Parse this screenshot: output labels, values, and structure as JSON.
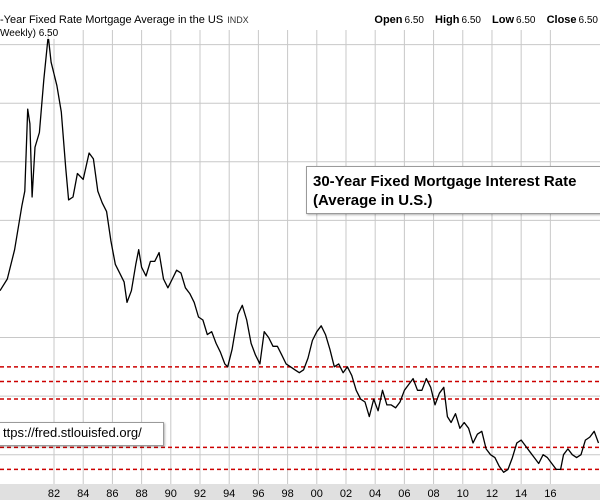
{
  "header": {
    "title": "-Year Fixed Rate Mortgage Average in the US",
    "source_tag": "INDX",
    "open_label": "Open",
    "open_value": "6.50",
    "high_label": "High",
    "high_value": "6.50",
    "low_label": "Low",
    "low_value": "6.50",
    "close_label": "Close",
    "close_value": "6.50"
  },
  "series_legend": "Weekly) 6.50",
  "annotation": {
    "line1": "30-Year Fixed Mortgage Interest Rate",
    "line2": "(Average in U.S.)"
  },
  "url_label": "ttps://fred.stlouisfed.org/",
  "colors": {
    "line": "#000000",
    "reference_lines": "#cc0000",
    "grid": "#c8c8c8",
    "axis_strip": "#e0e0e0"
  },
  "chart_data": {
    "type": "line",
    "title": "",
    "xlabel": "",
    "ylabel": "",
    "xlim": [
      1978.3,
      2019.4
    ],
    "ylim": [
      3.0,
      18.5
    ],
    "x_tick_labels": [
      {
        "year": 1982,
        "label": "82"
      },
      {
        "year": 1984,
        "label": "84"
      },
      {
        "year": 1986,
        "label": "86"
      },
      {
        "year": 1988,
        "label": "88"
      },
      {
        "year": 1990,
        "label": "90"
      },
      {
        "year": 1992,
        "label": "92"
      },
      {
        "year": 1994,
        "label": "94"
      },
      {
        "year": 1996,
        "label": "96"
      },
      {
        "year": 1998,
        "label": "98"
      },
      {
        "year": 2000,
        "label": "00"
      },
      {
        "year": 2002,
        "label": "02"
      },
      {
        "year": 2004,
        "label": "04"
      },
      {
        "year": 2006,
        "label": "06"
      },
      {
        "year": 2008,
        "label": "08"
      },
      {
        "year": 2010,
        "label": "10"
      },
      {
        "year": 2012,
        "label": "12"
      },
      {
        "year": 2014,
        "label": "14"
      },
      {
        "year": 2016,
        "label": "16"
      }
    ],
    "reference_lines": [
      7.0,
      6.5,
      5.9,
      4.25,
      3.5
    ],
    "grid": true,
    "series": [
      {
        "x": [
          1978.3,
          1978.8,
          1979.3,
          1979.8,
          1980.0,
          1980.2,
          1980.35,
          1980.5,
          1980.7,
          1981.0,
          1981.3,
          1981.6,
          1981.8,
          1982.0,
          1982.2,
          1982.5,
          1982.8,
          1983.0,
          1983.3,
          1983.6,
          1984.0,
          1984.4,
          1984.7,
          1985.0,
          1985.3,
          1985.6,
          1985.9,
          1986.2,
          1986.5,
          1986.8,
          1987.0,
          1987.3,
          1987.6,
          1987.8,
          1988.0,
          1988.3,
          1988.6,
          1988.9,
          1989.2,
          1989.5,
          1989.8,
          1990.1,
          1990.4,
          1990.7,
          1991.0,
          1991.3,
          1991.6,
          1991.9,
          1992.2,
          1992.5,
          1992.8,
          1993.1,
          1993.4,
          1993.7,
          1993.9,
          1994.2,
          1994.6,
          1994.9,
          1995.2,
          1995.5,
          1995.8,
          1996.1,
          1996.4,
          1996.7,
          1997.0,
          1997.3,
          1997.6,
          1997.9,
          1998.2,
          1998.5,
          1998.8,
          1999.1,
          1999.4,
          1999.7,
          2000.0,
          2000.3,
          2000.6,
          2000.9,
          2001.2,
          2001.5,
          2001.8,
          2002.1,
          2002.4,
          2002.7,
          2003.0,
          2003.3,
          2003.6,
          2003.9,
          2004.2,
          2004.5,
          2004.8,
          2005.1,
          2005.4,
          2005.7,
          2006.0,
          2006.3,
          2006.6,
          2006.9,
          2007.2,
          2007.5,
          2007.8,
          2008.1,
          2008.4,
          2008.7,
          2008.95,
          2009.2,
          2009.5,
          2009.8,
          2010.1,
          2010.4,
          2010.7,
          2011.0,
          2011.3,
          2011.6,
          2011.9,
          2012.2,
          2012.5,
          2012.8,
          2013.1,
          2013.4,
          2013.7,
          2014.0,
          2014.3,
          2014.6,
          2014.9,
          2015.2,
          2015.5,
          2015.8,
          2016.1,
          2016.4,
          2016.7,
          2016.9,
          2017.2,
          2017.5,
          2017.8,
          2018.1,
          2018.4,
          2018.7,
          2019.0,
          2019.3
        ],
        "y": [
          9.6,
          10.0,
          11.0,
          12.5,
          13.0,
          15.8,
          15.3,
          12.8,
          14.5,
          15.0,
          16.8,
          18.3,
          17.4,
          17.0,
          16.6,
          15.7,
          13.8,
          12.7,
          12.8,
          13.6,
          13.4,
          14.3,
          14.1,
          13.0,
          12.6,
          12.3,
          11.3,
          10.5,
          10.2,
          9.9,
          9.2,
          9.6,
          10.5,
          11.0,
          10.4,
          10.1,
          10.6,
          10.6,
          10.9,
          10.0,
          9.7,
          10.0,
          10.3,
          10.2,
          9.7,
          9.5,
          9.2,
          8.7,
          8.6,
          8.1,
          8.2,
          7.8,
          7.5,
          7.1,
          7.0,
          7.6,
          8.8,
          9.1,
          8.6,
          7.8,
          7.4,
          7.1,
          8.2,
          8.0,
          7.7,
          7.7,
          7.4,
          7.1,
          7.0,
          6.9,
          6.8,
          6.9,
          7.3,
          7.9,
          8.2,
          8.4,
          8.1,
          7.6,
          7.0,
          7.1,
          6.8,
          7.0,
          6.7,
          6.2,
          5.9,
          5.8,
          5.3,
          5.9,
          5.5,
          6.2,
          5.7,
          5.7,
          5.6,
          5.8,
          6.2,
          6.4,
          6.6,
          6.2,
          6.2,
          6.6,
          6.3,
          5.7,
          6.1,
          6.3,
          5.3,
          5.1,
          5.4,
          4.9,
          5.1,
          4.9,
          4.4,
          4.7,
          4.8,
          4.2,
          4.0,
          3.9,
          3.6,
          3.4,
          3.5,
          3.9,
          4.4,
          4.5,
          4.3,
          4.1,
          3.9,
          3.7,
          4.0,
          3.9,
          3.7,
          3.5,
          3.5,
          4.0,
          4.2,
          4.0,
          3.9,
          4.0,
          4.5,
          4.6,
          4.8,
          4.4
        ]
      }
    ]
  }
}
